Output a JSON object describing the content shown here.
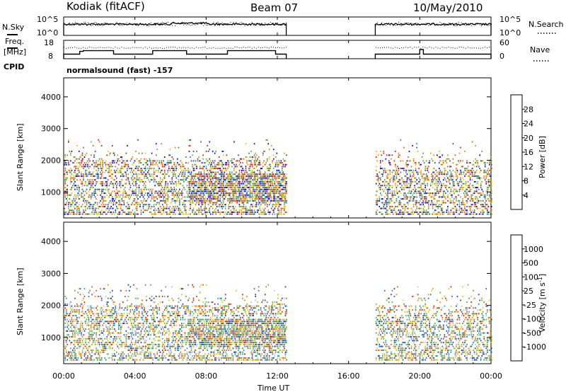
{
  "header": {
    "station": "Kodiak (fitACF)",
    "beam": "Beam 07",
    "date": "10/May/2010"
  },
  "left_labels": {
    "nsky": "N.Sky",
    "freq_line1": "Freq.",
    "freq_line2": "[MHz]",
    "cpid": "CPID"
  },
  "right_labels": {
    "nsearch": "N.Search",
    "nave": "Nave"
  },
  "cpid_text": "normalsound (fast) -157",
  "chart_data": [
    {
      "type": "line",
      "name": "noise",
      "y_tick_labels": [
        "10^5",
        "10^0"
      ],
      "right_tick_labels": [
        "10^5",
        "10^0"
      ],
      "x_range_hours": [
        0,
        24
      ],
      "data_gaps_hours": [
        [
          12.5,
          17.5
        ]
      ]
    },
    {
      "type": "line",
      "name": "frequency-nave",
      "y_tick_labels": [
        "18",
        "8"
      ],
      "right_tick_labels": [
        "60",
        "0"
      ],
      "freq_segments": [
        {
          "x": [
            0,
            0.9
          ],
          "freq_mhz": 10.5
        },
        {
          "x": [
            0.9,
            1.1
          ],
          "freq_mhz": 12.0
        },
        {
          "x": [
            1.1,
            2.8
          ],
          "freq_mhz": 12.4
        },
        {
          "x": [
            2.8,
            5.0
          ],
          "freq_mhz": 10.5
        },
        {
          "x": [
            5.0,
            6.9
          ],
          "freq_mhz": 12.4
        },
        {
          "x": [
            6.9,
            9.2
          ],
          "freq_mhz": 10.5
        },
        {
          "x": [
            9.2,
            11.9
          ],
          "freq_mhz": 12.4
        },
        {
          "x": [
            11.9,
            12.5
          ],
          "freq_mhz": 10.5
        },
        {
          "x": [
            17.5,
            20.0
          ],
          "freq_mhz": 10.5
        },
        {
          "x": [
            20.0,
            20.2
          ],
          "freq_mhz": 13.0
        },
        {
          "x": [
            20.2,
            20.6
          ],
          "freq_mhz": 10.5
        },
        {
          "x": [
            20.6,
            24.0
          ],
          "freq_mhz": 10.5
        }
      ]
    },
    {
      "type": "heatmap",
      "name": "power",
      "ylabel": "Slant Range [km]",
      "y_ticks": [
        1000,
        2000,
        3000,
        4000
      ],
      "ylim": [
        180,
        4600
      ],
      "x_range_hours": [
        0,
        24
      ],
      "data_gaps_hours": [
        [
          12.5,
          17.5
        ]
      ],
      "colorbar": {
        "label": "Power [dB]",
        "tick_labels": [
          "4",
          "8",
          "12",
          "16",
          "20",
          "24",
          "28"
        ],
        "colors": [
          "#0000ff",
          "#2b4ca8",
          "#2e8a6e",
          "#59b24f",
          "#f2c200",
          "#f08c00",
          "#f05a00",
          "#e61e00"
        ]
      }
    },
    {
      "type": "heatmap",
      "name": "velocity",
      "ylabel": "Slant Range [km]",
      "y_ticks": [
        1000,
        2000,
        3000,
        4000
      ],
      "ylim": [
        180,
        4600
      ],
      "x_range_hours": [
        0,
        24
      ],
      "data_gaps_hours": [
        [
          12.5,
          17.5
        ]
      ],
      "colorbar": {
        "label": "Velocity [m s^-1]",
        "tick_labels": [
          "1000",
          "500",
          "100",
          "25",
          "-25",
          "-100",
          "-500",
          "-1000"
        ],
        "colors": [
          "#1e3cb4",
          "#2a6fc6",
          "#2aa0a0",
          "#4cc030",
          "#c0c0c0",
          "#f0c000",
          "#f08c00",
          "#e85a00",
          "#e01e00"
        ]
      }
    }
  ],
  "x_axis": {
    "title": "Time UT",
    "tick_labels": [
      "00:00",
      "04:00",
      "08:00",
      "12:00",
      "16:00",
      "20:00",
      "00:00"
    ]
  }
}
